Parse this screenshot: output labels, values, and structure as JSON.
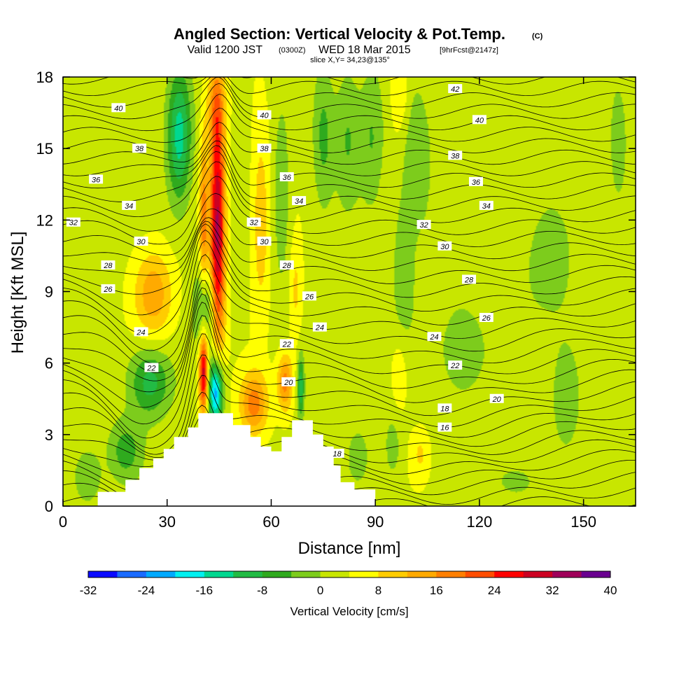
{
  "header": {
    "title": "Angled Section: Vertical Velocity & Pot.Temp.",
    "title_mark": "(C)",
    "valid_prefix": "Valid 1200 JST",
    "valid_zulu": "(0300Z)",
    "valid_date": "WED 18 Mar 2015",
    "forecast": "[9hrFcst@2147z]",
    "slice": "slice X,Y= 34,23@135°"
  },
  "chart_data": {
    "type": "heatmap",
    "xlabel": "Distance [nm]",
    "ylabel": "Height [Kft MSL]",
    "xlim": [
      0,
      165
    ],
    "ylim": [
      0,
      18
    ],
    "x_ticks": [
      "0",
      "30",
      "60",
      "90",
      "120",
      "150"
    ],
    "y_ticks": [
      "0",
      "3",
      "6",
      "9",
      "12",
      "15",
      "18"
    ],
    "colorbar": {
      "label": "Vertical Velocity [cm/s]",
      "min": -32,
      "max": 40,
      "step": 4,
      "tick_labels": [
        "-32",
        "-24",
        "-16",
        "-8",
        "0",
        "8",
        "16",
        "24",
        "32",
        "40"
      ],
      "colors": [
        "#0a0aff",
        "#1a6bff",
        "#00aaff",
        "#00f0f0",
        "#00d890",
        "#22bb44",
        "#2faa1e",
        "#7dcc1c",
        "#c8e600",
        "#ffff00",
        "#ffcc00",
        "#ffaa00",
        "#ff7f00",
        "#ff4d00",
        "#ff0000",
        "#cc0022",
        "#a0005a",
        "#6a0090"
      ]
    },
    "terrain_profile": [
      [
        0,
        0
      ],
      [
        10,
        0
      ],
      [
        10,
        0.6
      ],
      [
        18,
        0.6
      ],
      [
        18,
        1.1
      ],
      [
        22,
        1.1
      ],
      [
        22,
        1.6
      ],
      [
        26,
        1.6
      ],
      [
        26,
        2.0
      ],
      [
        29,
        2.0
      ],
      [
        29,
        2.4
      ],
      [
        32,
        2.4
      ],
      [
        32,
        2.9
      ],
      [
        36,
        2.9
      ],
      [
        36,
        3.3
      ],
      [
        39,
        3.3
      ],
      [
        39,
        3.9
      ],
      [
        49,
        3.9
      ],
      [
        49,
        3.4
      ],
      [
        54,
        3.4
      ],
      [
        54,
        2.9
      ],
      [
        57,
        2.9
      ],
      [
        57,
        2.5
      ],
      [
        60,
        2.5
      ],
      [
        60,
        2.3
      ],
      [
        63,
        2.3
      ],
      [
        63,
        2.9
      ],
      [
        66,
        2.9
      ],
      [
        66,
        3.6
      ],
      [
        72,
        3.6
      ],
      [
        72,
        3.0
      ],
      [
        75,
        3.0
      ],
      [
        75,
        2.5
      ],
      [
        78,
        2.5
      ],
      [
        78,
        1.7
      ],
      [
        80,
        1.7
      ],
      [
        80,
        1.0
      ],
      [
        84,
        1.0
      ],
      [
        84,
        0.7
      ],
      [
        90,
        0.7
      ],
      [
        90,
        0
      ],
      [
        165,
        0
      ]
    ],
    "theta_contours": {
      "levels": [
        16,
        18,
        20,
        22,
        24,
        26,
        28,
        30,
        32,
        34,
        36,
        38,
        40,
        42
      ],
      "labels": [
        {
          "text": "40",
          "x": 16,
          "y": 16.7
        },
        {
          "text": "38",
          "x": 22,
          "y": 15.0
        },
        {
          "text": "36",
          "x": 9.5,
          "y": 13.7
        },
        {
          "text": "34",
          "x": 19,
          "y": 12.6
        },
        {
          "text": "32",
          "x": 3,
          "y": 11.9
        },
        {
          "text": "30",
          "x": 22.5,
          "y": 11.1
        },
        {
          "text": "28",
          "x": 13,
          "y": 10.1
        },
        {
          "text": "26",
          "x": 13,
          "y": 9.1
        },
        {
          "text": "24",
          "x": 22.5,
          "y": 7.3
        },
        {
          "text": "22",
          "x": 25.5,
          "y": 5.8
        },
        {
          "text": "40",
          "x": 58,
          "y": 16.4
        },
        {
          "text": "38",
          "x": 58,
          "y": 15.0
        },
        {
          "text": "36",
          "x": 64.5,
          "y": 13.8
        },
        {
          "text": "34",
          "x": 68,
          "y": 12.8
        },
        {
          "text": "32",
          "x": 55,
          "y": 11.9
        },
        {
          "text": "30",
          "x": 58,
          "y": 11.1
        },
        {
          "text": "28",
          "x": 64.5,
          "y": 10.1
        },
        {
          "text": "26",
          "x": 71,
          "y": 8.8
        },
        {
          "text": "24",
          "x": 74,
          "y": 7.5
        },
        {
          "text": "22",
          "x": 64.5,
          "y": 6.8
        },
        {
          "text": "20",
          "x": 65,
          "y": 5.2
        },
        {
          "text": "18",
          "x": 79,
          "y": 2.2
        },
        {
          "text": "42",
          "x": 113,
          "y": 17.5
        },
        {
          "text": "40",
          "x": 120,
          "y": 16.2
        },
        {
          "text": "38",
          "x": 113,
          "y": 14.7
        },
        {
          "text": "36",
          "x": 119,
          "y": 13.6
        },
        {
          "text": "34",
          "x": 122,
          "y": 12.6
        },
        {
          "text": "32",
          "x": 104,
          "y": 11.8
        },
        {
          "text": "30",
          "x": 110,
          "y": 10.9
        },
        {
          "text": "28",
          "x": 117,
          "y": 9.5
        },
        {
          "text": "26",
          "x": 122,
          "y": 7.9
        },
        {
          "text": "24",
          "x": 107,
          "y": 7.1
        },
        {
          "text": "22",
          "x": 113,
          "y": 5.9
        },
        {
          "text": "20",
          "x": 125,
          "y": 4.5
        },
        {
          "text": "18",
          "x": 110,
          "y": 4.1
        },
        {
          "text": "16",
          "x": 110,
          "y": 3.3
        }
      ]
    },
    "velocity_features": [
      {
        "x": 44.5,
        "y": 11.5,
        "sx": 2.2,
        "sy": 5.5,
        "v": 30
      },
      {
        "x": 44,
        "y": 16.8,
        "sx": 2.6,
        "sy": 1.8,
        "v": 8
      },
      {
        "x": 40.5,
        "y": 12.0,
        "sx": 1.2,
        "sy": 3.5,
        "v": 14
      },
      {
        "x": 33.5,
        "y": 15.5,
        "sx": 3.5,
        "sy": 2.8,
        "v": -17
      },
      {
        "x": 40.5,
        "y": 5.6,
        "sx": 1.3,
        "sy": 1.7,
        "v": 28
      },
      {
        "x": 44,
        "y": 4.8,
        "sx": 2.1,
        "sy": 1.5,
        "v": -30
      },
      {
        "x": 41,
        "y": 8.3,
        "sx": 3.2,
        "sy": 1.7,
        "v": -12
      },
      {
        "x": 26,
        "y": 8.9,
        "sx": 5.5,
        "sy": 1.8,
        "v": 12
      },
      {
        "x": 25,
        "y": 5.2,
        "sx": 6,
        "sy": 1.5,
        "v": -13
      },
      {
        "x": 18,
        "y": 2.3,
        "sx": 5,
        "sy": 1.3,
        "v": -9
      },
      {
        "x": 55,
        "y": 4.3,
        "sx": 4,
        "sy": 1.3,
        "v": 15
      },
      {
        "x": 64,
        "y": 5.2,
        "sx": 2.2,
        "sy": 1.2,
        "v": 15
      },
      {
        "x": 68.5,
        "y": 5.0,
        "sx": 1.0,
        "sy": 1.3,
        "v": -14
      },
      {
        "x": 57,
        "y": 12.0,
        "sx": 2.5,
        "sy": 4,
        "v": 8
      },
      {
        "x": 63,
        "y": 13,
        "sx": 2.5,
        "sy": 4,
        "v": -6
      },
      {
        "x": 67,
        "y": 9.0,
        "sx": 1.8,
        "sy": 2.2,
        "v": 6
      },
      {
        "x": 75,
        "y": 15.5,
        "sx": 3,
        "sy": 3,
        "v": -8
      },
      {
        "x": 82,
        "y": 15.5,
        "sx": 3.5,
        "sy": 3,
        "v": -7
      },
      {
        "x": 89,
        "y": 15.5,
        "sx": 3.5,
        "sy": 3,
        "v": -7
      },
      {
        "x": 97,
        "y": 17.5,
        "sx": 2.5,
        "sy": 1.8,
        "v": 6
      },
      {
        "x": 102,
        "y": 14.5,
        "sx": 4,
        "sy": 3,
        "v": -7
      },
      {
        "x": 98,
        "y": 10.0,
        "sx": 3,
        "sy": 3,
        "v": -6
      },
      {
        "x": 97,
        "y": 5.5,
        "sx": 2.5,
        "sy": 1.8,
        "v": 5
      },
      {
        "x": 103,
        "y": 2.2,
        "sx": 3,
        "sy": 1.2,
        "v": 6
      },
      {
        "x": 95,
        "y": 2.5,
        "sx": 2.5,
        "sy": 1.5,
        "v": -5
      },
      {
        "x": 85,
        "y": 2.1,
        "sx": 3,
        "sy": 1.1,
        "v": -6
      },
      {
        "x": 114,
        "y": 6.5,
        "sx": 12,
        "sy": 4,
        "v": -4
      },
      {
        "x": 140,
        "y": 10,
        "sx": 10,
        "sy": 3.5,
        "v": -4
      },
      {
        "x": 145,
        "y": 4.5,
        "sx": 5,
        "sy": 2.5,
        "v": -5
      },
      {
        "x": 130,
        "y": 1.0,
        "sx": 8,
        "sy": 1,
        "v": -4
      },
      {
        "x": 160,
        "y": 15,
        "sx": 3,
        "sy": 3,
        "v": -5
      },
      {
        "x": 7,
        "y": 1.2,
        "sx": 4,
        "sy": 1.2,
        "v": -7
      }
    ]
  }
}
